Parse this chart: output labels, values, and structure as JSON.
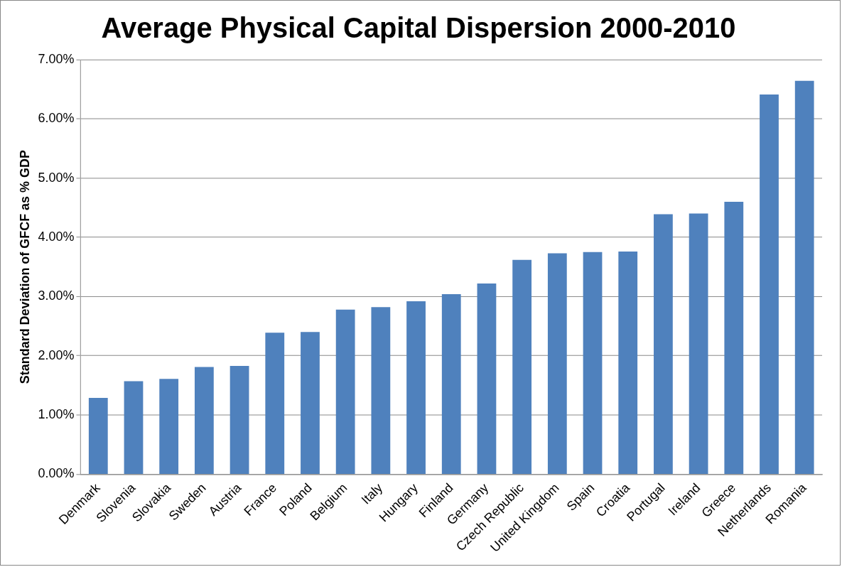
{
  "chart_data": {
    "type": "bar",
    "title": "Average Physical Capital Dispersion 2000-2010",
    "ylabel": "Standard Deviation of GFCF as % GDP",
    "categories": [
      "Denmark",
      "Slovenia",
      "Slovakia",
      "Sweden",
      "Austria",
      "France",
      "Poland",
      "Belgium",
      "Italy",
      "Hungary",
      "Finland",
      "Germany",
      "Czech Republic",
      "United Kingdom",
      "Spain",
      "Croatia",
      "Portugal",
      "Ireland",
      "Greece",
      "Netherlands",
      "Romania"
    ],
    "values": [
      1.29,
      1.57,
      1.61,
      1.81,
      1.83,
      2.39,
      2.4,
      2.78,
      2.82,
      2.92,
      3.04,
      3.22,
      3.62,
      3.73,
      3.75,
      3.76,
      4.39,
      4.4,
      4.6,
      6.41,
      6.64
    ],
    "color": "#4f81bd",
    "ylim": [
      0,
      7
    ],
    "yticks": [
      {
        "value": 0,
        "label": "0.00%"
      },
      {
        "value": 1,
        "label": "1.00%"
      },
      {
        "value": 2,
        "label": "2.00%"
      },
      {
        "value": 3,
        "label": "3.00%"
      },
      {
        "value": 4,
        "label": "4.00%"
      },
      {
        "value": 5,
        "label": "5.00%"
      },
      {
        "value": 6,
        "label": "6.00%"
      },
      {
        "value": 7,
        "label": "7.00%"
      }
    ],
    "grid": "y",
    "legend": false
  }
}
